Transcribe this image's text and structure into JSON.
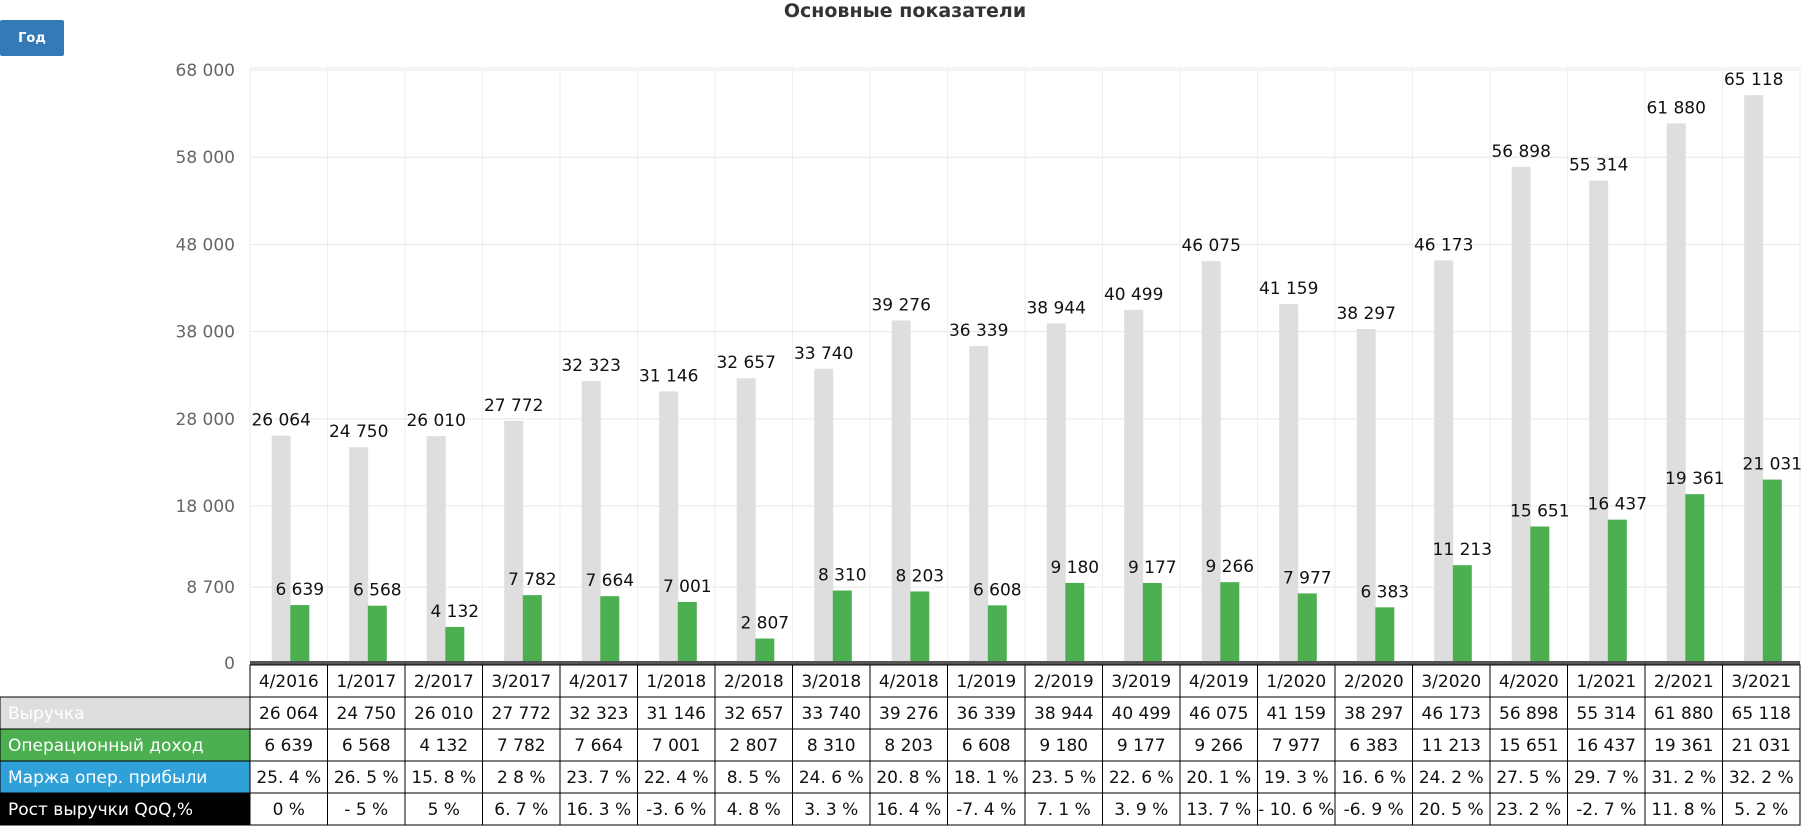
{
  "title": "Основные показатели",
  "period_button": "Год",
  "chart_data": {
    "type": "bar",
    "categories": [
      "4/2016",
      "1/2017",
      "2/2017",
      "3/2017",
      "4/2017",
      "1/2018",
      "2/2018",
      "3/2018",
      "4/2018",
      "1/2019",
      "2/2019",
      "3/2019",
      "4/2019",
      "1/2020",
      "2/2020",
      "3/2020",
      "4/2020",
      "1/2021",
      "2/2021",
      "3/2021"
    ],
    "y_ticks": [
      "68 000",
      "58 000",
      "48 000",
      "38 000",
      "28 000",
      "18 000",
      "8 700",
      "0"
    ],
    "ylim": [
      0,
      68000
    ],
    "grid": true,
    "series": [
      {
        "name": "Выручка",
        "color": "#dedede",
        "values": [
          26064,
          24750,
          26010,
          27772,
          32323,
          31146,
          32657,
          33740,
          39276,
          36339,
          38944,
          40499,
          46075,
          41159,
          38297,
          46173,
          56898,
          55314,
          61880,
          65118
        ],
        "labels": [
          "26 064",
          "24 750",
          "26 010",
          "27 772",
          "32 323",
          "31 146",
          "32 657",
          "33 740",
          "39 276",
          "36 339",
          "38 944",
          "40 499",
          "46 075",
          "41 159",
          "38 297",
          "46 173",
          "56 898",
          "55 314",
          "61 880",
          "65 118"
        ]
      },
      {
        "name": "Операционный доход",
        "color": "#4caf50",
        "values": [
          6639,
          6568,
          4132,
          7782,
          7664,
          7001,
          2807,
          8310,
          8203,
          6608,
          9180,
          9177,
          9266,
          7977,
          6383,
          11213,
          15651,
          16437,
          19361,
          21031
        ],
        "labels": [
          "6 639",
          "6 568",
          "4 132",
          "7 782",
          "7 664",
          "7 001",
          "2 807",
          "8 310",
          "8 203",
          "6 608",
          "9 180",
          "9 177",
          "9 266",
          "7 977",
          "6 383",
          "11 213",
          "15 651",
          "16 437",
          "19 361",
          "21 031"
        ]
      }
    ]
  },
  "table": {
    "rows": [
      {
        "name": "Выручка",
        "bg": "#dedede",
        "fg": "#ffffff",
        "cells": [
          "26 064",
          "24 750",
          "26 010",
          "27 772",
          "32 323",
          "31 146",
          "32 657",
          "33 740",
          "39 276",
          "36 339",
          "38 944",
          "40 499",
          "46 075",
          "41 159",
          "38 297",
          "46 173",
          "56 898",
          "55 314",
          "61 880",
          "65 118"
        ]
      },
      {
        "name": "Операционный доход",
        "bg": "#4caf50",
        "fg": "#ffffff",
        "cells": [
          "6 639",
          "6 568",
          "4 132",
          "7 782",
          "7 664",
          "7 001",
          "2 807",
          "8 310",
          "8 203",
          "6 608",
          "9 180",
          "9 177",
          "9 266",
          "7 977",
          "6 383",
          "11 213",
          "15 651",
          "16 437",
          "19 361",
          "21 031"
        ]
      },
      {
        "name": "Маржа опер. прибыли",
        "bg": "#2fa0d8",
        "fg": "#ffffff",
        "cells": [
          "25. 4 %",
          "26. 5 %",
          "15. 8 %",
          "2 8 %",
          "23. 7 %",
          "22. 4 %",
          "8. 5 %",
          "24. 6 %",
          "20. 8 %",
          "18. 1 %",
          "23. 5 %",
          "22. 6 %",
          "20. 1 %",
          "19. 3 %",
          "16. 6 %",
          "24. 2 %",
          "27. 5 %",
          "29. 7 %",
          "31. 2 %",
          "32. 2 %"
        ]
      },
      {
        "name": "Рост выручки QoQ,%",
        "bg": "#000000",
        "fg": "#ffffff",
        "cells": [
          "0 %",
          "- 5 %",
          "5 %",
          "6. 7 %",
          "16. 3 %",
          "-3. 6 %",
          "4. 8 %",
          "3. 3 %",
          "16. 4 %",
          "-7. 4 %",
          "7. 1 %",
          "3. 9 %",
          "13. 7 %",
          "- 10. 6 %",
          "-6. 9 %",
          "20. 5 %",
          "23. 2 %",
          "-2. 7 %",
          "11. 8 %",
          "5. 2 %"
        ]
      }
    ]
  }
}
